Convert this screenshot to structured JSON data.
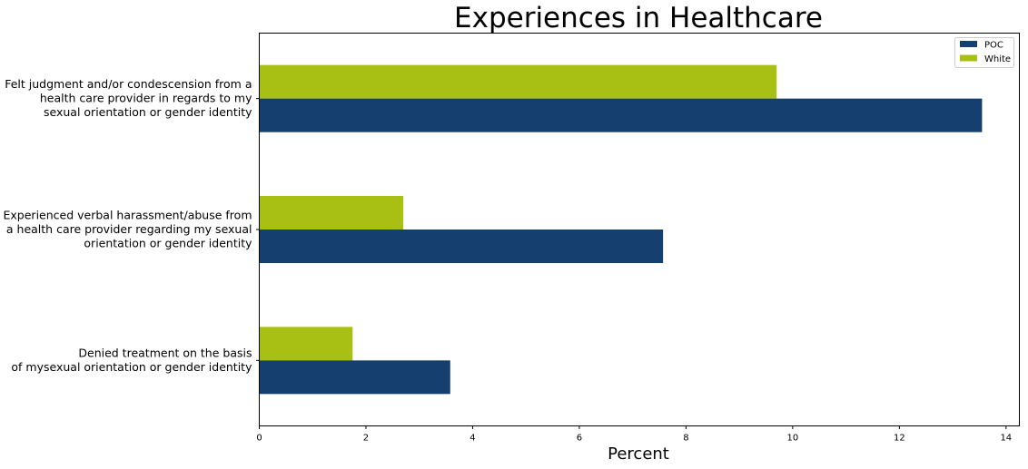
{
  "chart_data": {
    "type": "bar",
    "orientation": "horizontal",
    "title": "Experiences in Healthcare",
    "xlabel": "Percent",
    "ylabel": "",
    "xlim": [
      0,
      14.25
    ],
    "xticks": [
      "0",
      "2",
      "4",
      "6",
      "8",
      "10",
      "12",
      "14"
    ],
    "categories": [
      [
        "Felt judgment and/or condescension from a",
        "health care provider in regards to my",
        "sexual orientation or gender identity"
      ],
      [
        "Experienced verbal harassment/abuse from",
        "a health care provider regarding my sexual",
        "orientation or gender identity"
      ],
      [
        "Denied treatment on the basis",
        "of mysexual orientation or gender identity"
      ]
    ],
    "series": [
      {
        "name": "POC",
        "color": "#143f6e",
        "values": [
          13.55,
          7.57,
          3.58
        ]
      },
      {
        "name": "White",
        "color": "#a8bf14",
        "values": [
          9.7,
          2.7,
          1.75
        ]
      }
    ],
    "legend": "top-right",
    "grid": false
  }
}
